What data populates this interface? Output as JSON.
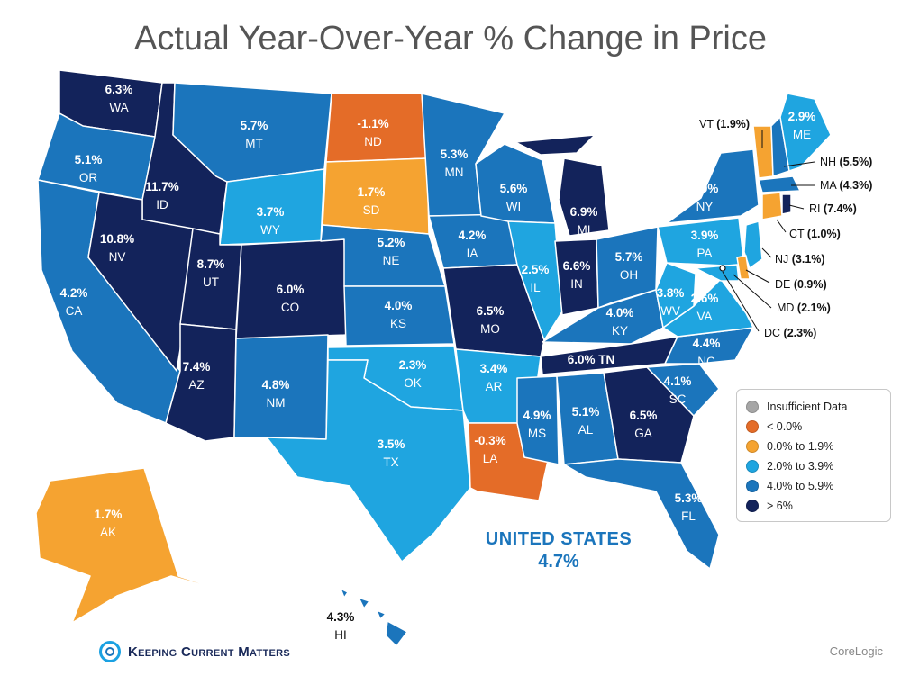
{
  "title": "Actual Year-Over-Year % Change in Price",
  "colors": {
    "insufficient": "#a6a6a6",
    "neg": "#e46c28",
    "low": "#f5a331",
    "mid": "#1fa5e0",
    "high": "#1b75bc",
    "top": "#13235b",
    "accent": "#1b75bc"
  },
  "states": [
    {
      "abbr": "WA",
      "value": "6.3%"
    },
    {
      "abbr": "OR",
      "value": "5.1%"
    },
    {
      "abbr": "CA",
      "value": "4.2%"
    },
    {
      "abbr": "ID",
      "value": "11.7%"
    },
    {
      "abbr": "NV",
      "value": "10.8%"
    },
    {
      "abbr": "MT",
      "value": "5.7%"
    },
    {
      "abbr": "WY",
      "value": "3.7%"
    },
    {
      "abbr": "UT",
      "value": "8.7%"
    },
    {
      "abbr": "CO",
      "value": "6.0%"
    },
    {
      "abbr": "AZ",
      "value": "7.4%"
    },
    {
      "abbr": "NM",
      "value": "4.8%"
    },
    {
      "abbr": "ND",
      "value": "-1.1%"
    },
    {
      "abbr": "SD",
      "value": "1.7%"
    },
    {
      "abbr": "NE",
      "value": "5.2%"
    },
    {
      "abbr": "KS",
      "value": "4.0%"
    },
    {
      "abbr": "OK",
      "value": "2.3%"
    },
    {
      "abbr": "TX",
      "value": "3.5%"
    },
    {
      "abbr": "MN",
      "value": "5.3%"
    },
    {
      "abbr": "IA",
      "value": "4.2%"
    },
    {
      "abbr": "MO",
      "value": "6.5%"
    },
    {
      "abbr": "AR",
      "value": "3.4%"
    },
    {
      "abbr": "LA",
      "value": "-0.3%"
    },
    {
      "abbr": "WI",
      "value": "5.6%"
    },
    {
      "abbr": "IL",
      "value": "2.5%"
    },
    {
      "abbr": "MI",
      "value": "6.9%"
    },
    {
      "abbr": "IN",
      "value": "6.6%"
    },
    {
      "abbr": "OH",
      "value": "5.7%"
    },
    {
      "abbr": "KY",
      "value": "4.0%"
    },
    {
      "abbr": "TN",
      "value": "6.0%"
    },
    {
      "abbr": "MS",
      "value": "4.9%"
    },
    {
      "abbr": "AL",
      "value": "5.1%"
    },
    {
      "abbr": "GA",
      "value": "6.5%"
    },
    {
      "abbr": "FL",
      "value": "5.3%"
    },
    {
      "abbr": "SC",
      "value": "4.1%"
    },
    {
      "abbr": "NC",
      "value": "4.4%"
    },
    {
      "abbr": "VA",
      "value": "2.6%"
    },
    {
      "abbr": "WV",
      "value": "3.8%"
    },
    {
      "abbr": "PA",
      "value": "3.9%"
    },
    {
      "abbr": "NY",
      "value": "4.9%"
    },
    {
      "abbr": "ME",
      "value": "2.9%"
    },
    {
      "abbr": "AK",
      "value": "1.7%"
    },
    {
      "abbr": "HI",
      "value": "4.3%"
    }
  ],
  "callouts": [
    {
      "abbr": "VT",
      "value": "(1.9%)"
    },
    {
      "abbr": "NH",
      "value": "(5.5%)"
    },
    {
      "abbr": "MA",
      "value": "(4.3%)"
    },
    {
      "abbr": "RI",
      "value": "(7.4%)"
    },
    {
      "abbr": "CT",
      "value": "(1.0%)"
    },
    {
      "abbr": "NJ",
      "value": "(3.1%)"
    },
    {
      "abbr": "DE",
      "value": "(0.9%)"
    },
    {
      "abbr": "MD",
      "value": "(2.1%)"
    },
    {
      "abbr": "DC",
      "value": "(2.3%)"
    }
  ],
  "legend": [
    {
      "label": "Insufficient Data",
      "color": "#a6a6a6"
    },
    {
      "label": "< 0.0%",
      "color": "#e46c28"
    },
    {
      "label": "0.0% to 1.9%",
      "color": "#f5a331"
    },
    {
      "label": "2.0% to 3.9%",
      "color": "#1fa5e0"
    },
    {
      "label": "4.0% to 5.9%",
      "color": "#1b75bc"
    },
    {
      "label": "> 6%",
      "color": "#13235b"
    }
  ],
  "us_total": {
    "name": "UNITED STATES",
    "value": "4.7%"
  },
  "logo_text": "Keeping Current Matters",
  "source": "CoreLogic"
}
